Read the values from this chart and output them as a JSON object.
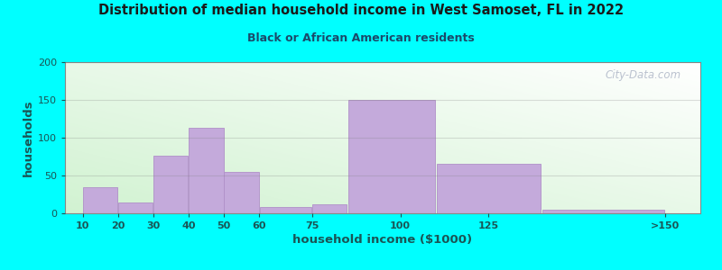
{
  "title": "Distribution of median household income in West Samoset, FL in 2022",
  "subtitle": "Black or African American residents",
  "xlabel": "household income ($1000)",
  "ylabel": "households",
  "background_outer": "#00FFFF",
  "bar_color": "#C4AADB",
  "bar_edge_color": "#B090C8",
  "watermark": "City-Data.com",
  "title_color": "#1a1a1a",
  "subtitle_color": "#1a4a6a",
  "axis_label_color": "#1a5555",
  "tick_color": "#1a5555",
  "ylim": [
    0,
    200
  ],
  "yticks": [
    0,
    50,
    100,
    150,
    200
  ],
  "bin_lefts": [
    10,
    20,
    30,
    40,
    50,
    60,
    75,
    85,
    110,
    140
  ],
  "bin_rights": [
    20,
    30,
    40,
    50,
    60,
    75,
    85,
    110,
    140,
    175
  ],
  "values": [
    35,
    14,
    76,
    113,
    55,
    8,
    12,
    150,
    65,
    5
  ],
  "xtick_positions": [
    10,
    20,
    30,
    40,
    50,
    60,
    75,
    100,
    125,
    175
  ],
  "xtick_labels": [
    "10",
    "20",
    "30",
    "40",
    "50",
    "60",
    "75",
    "100",
    "125",
    ">150"
  ],
  "xmin": 5,
  "xmax": 185
}
